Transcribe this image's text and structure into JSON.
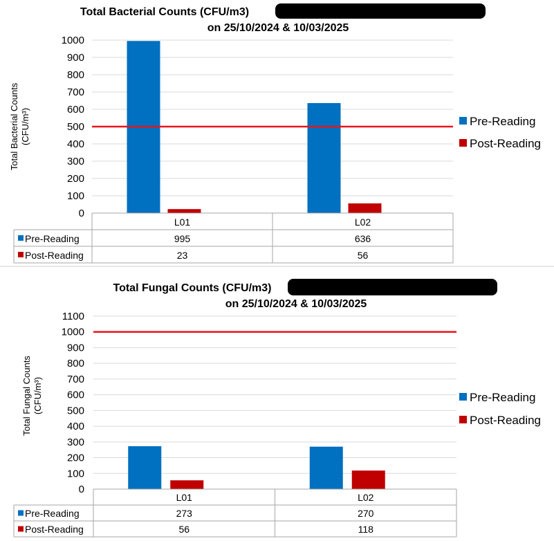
{
  "chart_data": [
    {
      "type": "bar",
      "title_line1": "Total Bacterial Counts (CFU/m3)",
      "title_line2": "on 25/10/2024 & 10/03/2025",
      "ylabel_line1": "Total Bacterial Counts",
      "ylabel_line2": "(CFU/m³)",
      "categories": [
        "L01",
        "L02"
      ],
      "ylim": [
        0,
        1000
      ],
      "yticks": [
        0,
        100,
        200,
        300,
        400,
        500,
        600,
        700,
        800,
        900,
        1000
      ],
      "series": [
        {
          "name": "Pre-Reading",
          "values": [
            995,
            636
          ],
          "color": "#0070C0"
        },
        {
          "name": "Post-Reading",
          "values": [
            23,
            56
          ],
          "color": "#C00000"
        }
      ],
      "reference_line": {
        "value": 500,
        "color": "#E8151B"
      },
      "grid": true,
      "legend_position": "right",
      "data_table": true
    },
    {
      "type": "bar",
      "title_line1": "Total Fungal Counts (CFU/m3)",
      "title_line2": "on 25/10/2024 & 10/03/2025",
      "ylabel_line1": "Total Fungal Counts",
      "ylabel_line2": "(CFU/m³)",
      "categories": [
        "L01",
        "L02"
      ],
      "ylim": [
        0,
        1100
      ],
      "yticks": [
        0,
        100,
        200,
        300,
        400,
        500,
        600,
        700,
        800,
        900,
        1000,
        1100
      ],
      "series": [
        {
          "name": "Pre-Reading",
          "values": [
            273,
            270
          ],
          "color": "#0070C0"
        },
        {
          "name": "Post-Reading",
          "values": [
            56,
            118
          ],
          "color": "#C00000"
        }
      ],
      "reference_line": {
        "value": 1000,
        "color": "#E8151B"
      },
      "grid": true,
      "legend_position": "right",
      "data_table": true
    }
  ],
  "colors": {
    "redaction": "#000000",
    "grid": "#D9D9D9",
    "divider": "#D0D0D0"
  }
}
